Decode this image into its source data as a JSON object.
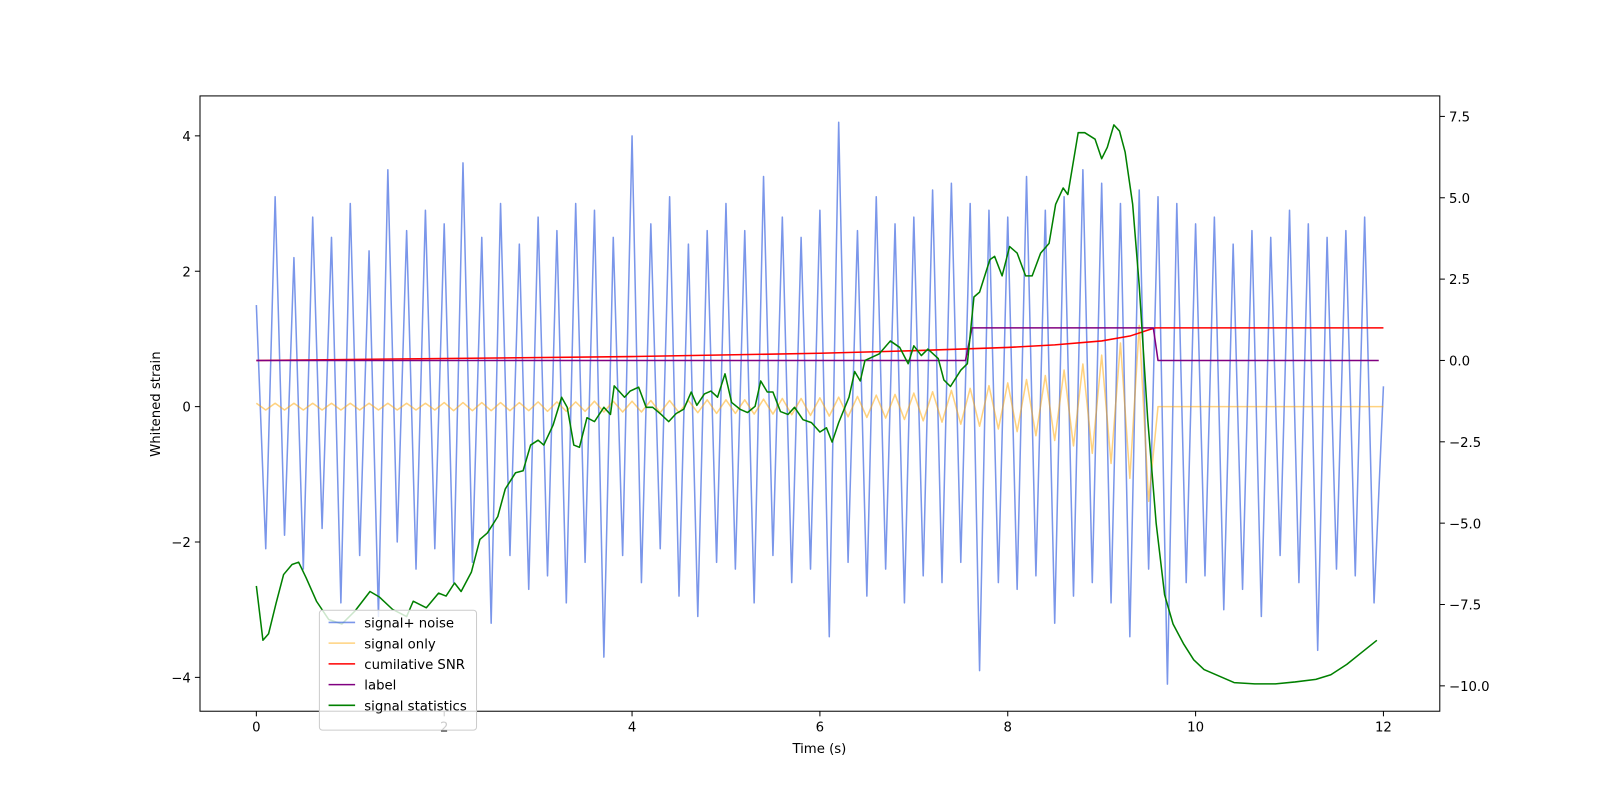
{
  "chart_data": {
    "type": "line",
    "xlabel": "Time (s)",
    "ylabel": "Whitened strain",
    "xlim": [
      -0.6,
      12.6
    ],
    "xticks": [
      0,
      2,
      4,
      6,
      8,
      10,
      12
    ],
    "ylim": [
      -4.5,
      4.59
    ],
    "yticks": [
      {
        "value": -4,
        "label": "−4"
      },
      {
        "value": -2,
        "label": "−2"
      },
      {
        "value": 0,
        "label": "0"
      },
      {
        "value": 2,
        "label": "2"
      },
      {
        "value": 4,
        "label": "4"
      }
    ],
    "y2lim": [
      -10.78,
      8.13
    ],
    "y2ticks": [
      {
        "value": -10,
        "label": "−10.0"
      },
      {
        "value": -7.5,
        "label": "−7.5"
      },
      {
        "value": -5,
        "label": "−5.0"
      },
      {
        "value": -2.5,
        "label": "−2.5"
      },
      {
        "value": 0,
        "label": "0.0"
      },
      {
        "value": 2.5,
        "label": "2.5"
      },
      {
        "value": 5,
        "label": "5.0"
      },
      {
        "value": 7.5,
        "label": "7.5"
      }
    ],
    "legend_loc": "best",
    "x": [
      0,
      0.1,
      0.2,
      0.3,
      0.4,
      0.5,
      0.6,
      0.7,
      0.8,
      0.9,
      1,
      1.1,
      1.2,
      1.3,
      1.4,
      1.5,
      1.6,
      1.7,
      1.8,
      1.9,
      2,
      2.1,
      2.2,
      2.3,
      2.4,
      2.5,
      2.6,
      2.7,
      2.8,
      2.9,
      3,
      3.1,
      3.2,
      3.3,
      3.4,
      3.5,
      3.6,
      3.7,
      3.8,
      3.9,
      4,
      4.1,
      4.2,
      4.3,
      4.4,
      4.5,
      4.6,
      4.7,
      4.8,
      4.9,
      5,
      5.1,
      5.2,
      5.3,
      5.4,
      5.5,
      5.6,
      5.7,
      5.8,
      5.9,
      6,
      6.1,
      6.2,
      6.3,
      6.4,
      6.5,
      6.6,
      6.7,
      6.8,
      6.9,
      7,
      7.1,
      7.2,
      7.3,
      7.4,
      7.5,
      7.6,
      7.7,
      7.8,
      7.9,
      8,
      8.1,
      8.2,
      8.3,
      8.4,
      8.5,
      8.6,
      8.7,
      8.8,
      8.9,
      9,
      9.1,
      9.2,
      9.3,
      9.4,
      9.5,
      9.6,
      9.7,
      9.8,
      9.9,
      10,
      10.1,
      10.2,
      10.3,
      10.4,
      10.5,
      10.6,
      10.7,
      10.8,
      10.9,
      11,
      11.1,
      11.2,
      11.3,
      11.4,
      11.5,
      11.6,
      11.7,
      11.8,
      11.9,
      12
    ],
    "series": [
      {
        "name": "signal+ noise",
        "color": "#4169e1",
        "opacity": 0.7,
        "values": [
          1.5,
          -2.1,
          3.1,
          -1.9,
          2.2,
          -2.4,
          2.8,
          -1.8,
          2.5,
          -2.9,
          3.0,
          -2.2,
          2.3,
          -3.1,
          3.5,
          -2.0,
          2.6,
          -2.4,
          2.9,
          -2.1,
          2.7,
          -2.6,
          3.6,
          -2.3,
          2.5,
          -3.2,
          3.0,
          -2.2,
          2.4,
          -2.7,
          2.8,
          -2.5,
          2.6,
          -2.9,
          3.0,
          -2.3,
          2.9,
          -3.7,
          2.5,
          -2.2,
          4.0,
          -2.6,
          2.7,
          -2.1,
          3.1,
          -2.8,
          2.4,
          -3.1,
          2.6,
          -2.3,
          3.0,
          -2.4,
          2.6,
          -2.9,
          3.4,
          -2.2,
          2.8,
          -2.6,
          2.5,
          -2.4,
          2.9,
          -3.4,
          4.2,
          -2.3,
          2.6,
          -2.8,
          3.1,
          -2.4,
          2.7,
          -2.9,
          2.8,
          -2.5,
          3.2,
          -2.6,
          3.3,
          -2.3,
          3.0,
          -3.9,
          2.9,
          -2.6,
          2.8,
          -2.7,
          3.4,
          -2.5,
          2.9,
          -3.2,
          3.1,
          -2.8,
          3.5,
          -2.6,
          3.3,
          -2.9,
          3.0,
          -3.4,
          3.2,
          -2.4,
          3.1,
          -4.1,
          3.0,
          -2.6,
          2.7,
          -2.5,
          2.8,
          -3.0,
          2.4,
          -2.7,
          2.6,
          -3.1,
          2.5,
          -2.2,
          2.9,
          -2.6,
          2.7,
          -3.6,
          2.5,
          -2.4,
          2.6,
          -2.5,
          2.8,
          -2.9,
          0.3
        ]
      },
      {
        "name": "signal only",
        "color": "#ffa500",
        "opacity": 0.5,
        "values": [
          0.05,
          -0.05,
          0.05,
          -0.05,
          0.05,
          -0.05,
          0.05,
          -0.05,
          0.05,
          -0.05,
          0.05,
          -0.05,
          0.05,
          -0.05,
          0.05,
          -0.05,
          0.05,
          -0.05,
          0.05,
          -0.05,
          0.06,
          -0.06,
          0.06,
          -0.06,
          0.06,
          -0.06,
          0.06,
          -0.06,
          0.06,
          -0.06,
          0.07,
          -0.07,
          0.07,
          -0.07,
          0.07,
          -0.07,
          0.08,
          -0.08,
          0.08,
          -0.08,
          0.08,
          -0.08,
          0.09,
          -0.09,
          0.09,
          -0.09,
          0.09,
          -0.09,
          0.1,
          -0.1,
          0.1,
          -0.1,
          0.1,
          -0.11,
          0.11,
          -0.11,
          0.12,
          -0.12,
          0.12,
          -0.13,
          0.13,
          -0.14,
          0.14,
          -0.15,
          0.15,
          -0.16,
          0.17,
          -0.17,
          0.18,
          -0.19,
          0.2,
          -0.21,
          0.22,
          -0.23,
          0.24,
          -0.26,
          0.27,
          -0.29,
          0.31,
          -0.33,
          0.35,
          -0.37,
          0.4,
          -0.43,
          0.46,
          -0.5,
          0.54,
          -0.58,
          0.63,
          -0.69,
          0.76,
          -0.84,
          0.94,
          -1.06,
          1.2,
          -1.4,
          0,
          0,
          0,
          0,
          0,
          0,
          0,
          0,
          0,
          0,
          0,
          0,
          0,
          0,
          0,
          0,
          0,
          0,
          0,
          0,
          0,
          0,
          0,
          0,
          0
        ]
      },
      {
        "name": "cumilative SNR",
        "color": "#ff0000",
        "opacity": 1,
        "axis": "y2",
        "x": [
          0,
          2,
          4,
          6,
          7,
          8,
          8.5,
          9,
          9.3,
          9.5,
          9.57,
          12
        ],
        "values": [
          0,
          0.06,
          0.12,
          0.22,
          0.3,
          0.4,
          0.48,
          0.6,
          0.75,
          0.94,
          1.0,
          1.0
        ]
      },
      {
        "name": "label",
        "color": "#800080",
        "opacity": 1,
        "axis": "y2",
        "x": [
          0,
          7.55,
          7.62,
          9.55,
          9.6,
          11.95
        ],
        "values": [
          0,
          0,
          1,
          1,
          0,
          0
        ]
      },
      {
        "name": "signal statistics",
        "color": "#008000",
        "opacity": 1,
        "axis": "y2",
        "x": [
          0,
          0.07,
          0.13,
          0.21,
          0.29,
          0.38,
          0.45,
          0.53,
          0.64,
          0.77,
          0.91,
          1.05,
          1.21,
          1.31,
          1.45,
          1.6,
          1.67,
          1.81,
          1.94,
          2.02,
          2.11,
          2.18,
          2.29,
          2.38,
          2.46,
          2.57,
          2.65,
          2.76,
          2.84,
          2.92,
          3.0,
          3.06,
          3.16,
          3.25,
          3.31,
          3.38,
          3.44,
          3.52,
          3.6,
          3.7,
          3.77,
          3.81,
          3.92,
          3.98,
          4.07,
          4.15,
          4.22,
          4.31,
          4.39,
          4.47,
          4.55,
          4.63,
          4.69,
          4.77,
          4.84,
          4.91,
          4.99,
          5.06,
          5.15,
          5.23,
          5.31,
          5.37,
          5.44,
          5.5,
          5.58,
          5.66,
          5.73,
          5.82,
          5.91,
          6.0,
          6.07,
          6.13,
          6.2,
          6.31,
          6.37,
          6.43,
          6.48,
          6.63,
          6.75,
          6.85,
          6.94,
          7.0,
          7.08,
          7.15,
          7.26,
          7.32,
          7.39,
          7.5,
          7.57,
          7.64,
          7.7,
          7.81,
          7.86,
          7.94,
          8.02,
          8.1,
          8.19,
          8.26,
          8.35,
          8.44,
          8.51,
          8.59,
          8.64,
          8.75,
          8.82,
          8.93,
          9.0,
          9.06,
          9.13,
          9.19,
          9.25,
          9.33,
          9.4,
          9.49,
          9.58,
          9.67,
          9.76,
          9.87,
          9.98,
          10.09,
          10.25,
          10.41,
          10.63,
          10.85,
          11.06,
          11.28,
          11.44,
          11.61,
          11.77,
          11.93
        ],
        "values": [
          -6.93,
          -8.6,
          -8.4,
          -7.46,
          -6.58,
          -6.27,
          -6.2,
          -6.68,
          -7.4,
          -7.96,
          -8.1,
          -7.7,
          -7.1,
          -7.27,
          -7.65,
          -7.87,
          -7.4,
          -7.6,
          -7.15,
          -7.24,
          -6.84,
          -7.1,
          -6.5,
          -5.5,
          -5.3,
          -4.8,
          -3.95,
          -3.45,
          -3.39,
          -2.6,
          -2.45,
          -2.6,
          -1.98,
          -1.13,
          -1.44,
          -2.6,
          -2.67,
          -1.76,
          -1.88,
          -1.44,
          -1.66,
          -0.78,
          -1.13,
          -0.94,
          -0.82,
          -1.44,
          -1.44,
          -1.66,
          -1.88,
          -1.63,
          -1.5,
          -0.97,
          -1.38,
          -1.03,
          -0.94,
          -1.13,
          -0.41,
          -1.29,
          -1.5,
          -1.6,
          -1.41,
          -0.63,
          -0.97,
          -0.97,
          -1.57,
          -1.66,
          -1.44,
          -1.82,
          -1.91,
          -2.2,
          -2.07,
          -2.51,
          -1.91,
          -1.13,
          -0.34,
          -0.63,
          0,
          0.2,
          0.6,
          0.4,
          -0.1,
          0.45,
          0.15,
          0.35,
          0.06,
          -0.6,
          -0.8,
          -0.3,
          -0.1,
          1.95,
          2.1,
          3.1,
          3.2,
          2.6,
          3.5,
          3.3,
          2.6,
          2.6,
          3.3,
          3.6,
          4.8,
          5.3,
          5.1,
          7.0,
          7.0,
          6.8,
          6.2,
          6.55,
          7.24,
          7.05,
          6.4,
          4.8,
          2.3,
          -1.8,
          -5.0,
          -7.2,
          -8.1,
          -8.7,
          -9.2,
          -9.5,
          -9.7,
          -9.9,
          -9.94,
          -9.94,
          -9.88,
          -9.8,
          -9.66,
          -9.34,
          -8.97,
          -8.6
        ]
      }
    ]
  }
}
